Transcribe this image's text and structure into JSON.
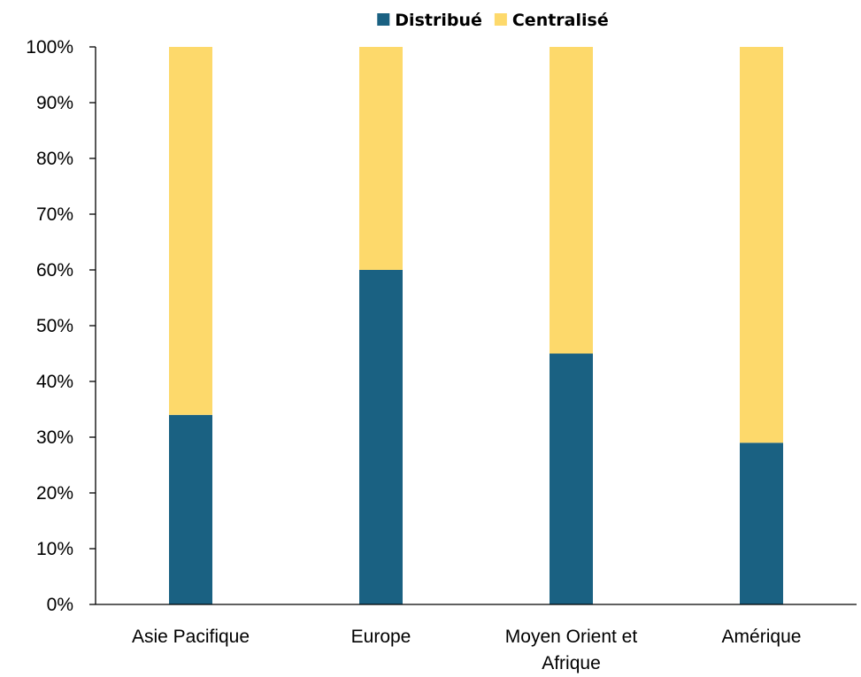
{
  "chart_data": {
    "type": "bar",
    "stacked": true,
    "percent_stacked": true,
    "categories": [
      [
        "Asie Pacifique"
      ],
      [
        "Europe"
      ],
      [
        "Moyen Orient et",
        "Afrique"
      ],
      [
        "Amérique"
      ]
    ],
    "series": [
      {
        "name": "Distribué",
        "values": [
          34,
          60,
          45,
          29
        ],
        "color": "#1a6182"
      },
      {
        "name": "Centralisé",
        "values": [
          66,
          40,
          55,
          71
        ],
        "color": "#fdd96b"
      }
    ],
    "ylim": [
      0,
      100
    ],
    "yticks": [
      0,
      10,
      20,
      30,
      40,
      50,
      60,
      70,
      80,
      90,
      100
    ],
    "ytick_suffix": "%",
    "grid": false,
    "legend_position": "top",
    "axis_color": "#000000"
  }
}
